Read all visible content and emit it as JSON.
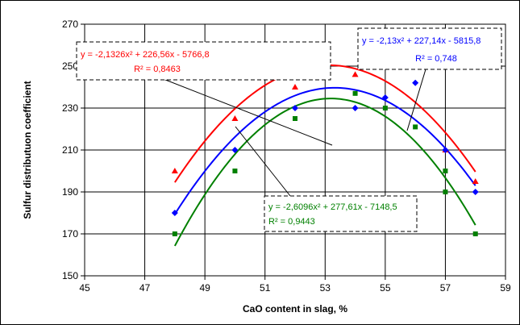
{
  "chart_data": {
    "type": "scatter",
    "xlabel": "CaO content in slag, %",
    "ylabel": "Sulfur distributuon coefficient",
    "xlim": [
      45,
      59
    ],
    "ylim": [
      150,
      270
    ],
    "x_ticks": [
      "45",
      "47",
      "49",
      "51",
      "53",
      "55",
      "57",
      "59"
    ],
    "y_ticks": [
      "150",
      "170",
      "190",
      "210",
      "230",
      "250",
      "270"
    ],
    "grid": true,
    "series": [
      {
        "color": "#ff0000",
        "marker": "triangle",
        "points": [
          [
            48,
            200
          ],
          [
            50,
            225
          ],
          [
            52,
            240
          ],
          [
            54,
            246
          ],
          [
            55,
            250
          ],
          [
            56,
            250
          ],
          [
            57,
            210
          ],
          [
            58,
            195
          ]
        ],
        "fit": {
          "a": -2.1326,
          "b": 226.56,
          "c": -5766.8
        },
        "equation": "y = -2,1326x² + 226,56x - 5766,8",
        "r2_label": "R² = 0,8463"
      },
      {
        "color": "#0000ff",
        "marker": "diamond",
        "points": [
          [
            48,
            180
          ],
          [
            50,
            210
          ],
          [
            52,
            230
          ],
          [
            54,
            230
          ],
          [
            55,
            235
          ],
          [
            56,
            242
          ],
          [
            57,
            210
          ],
          [
            58,
            190
          ]
        ],
        "fit": {
          "a": -2.13,
          "b": 227.14,
          "c": -5815.8
        },
        "equation": "y = -2,13x² + 227,14x - 5815,8",
        "r2_label": "R² = 0,748"
      },
      {
        "color": "#008000",
        "marker": "square",
        "points": [
          [
            48,
            170
          ],
          [
            50,
            200
          ],
          [
            52,
            225
          ],
          [
            54,
            237
          ],
          [
            55,
            230
          ],
          [
            56,
            221
          ],
          [
            57,
            200
          ],
          [
            57,
            190
          ],
          [
            58,
            170
          ]
        ],
        "fit": {
          "a": -2.6096,
          "b": 277.61,
          "c": -7148.5
        },
        "equation": "y = -2,6096x² + 277,61x - 7148,5",
        "r2_label": "R² = 0,9443"
      }
    ]
  }
}
